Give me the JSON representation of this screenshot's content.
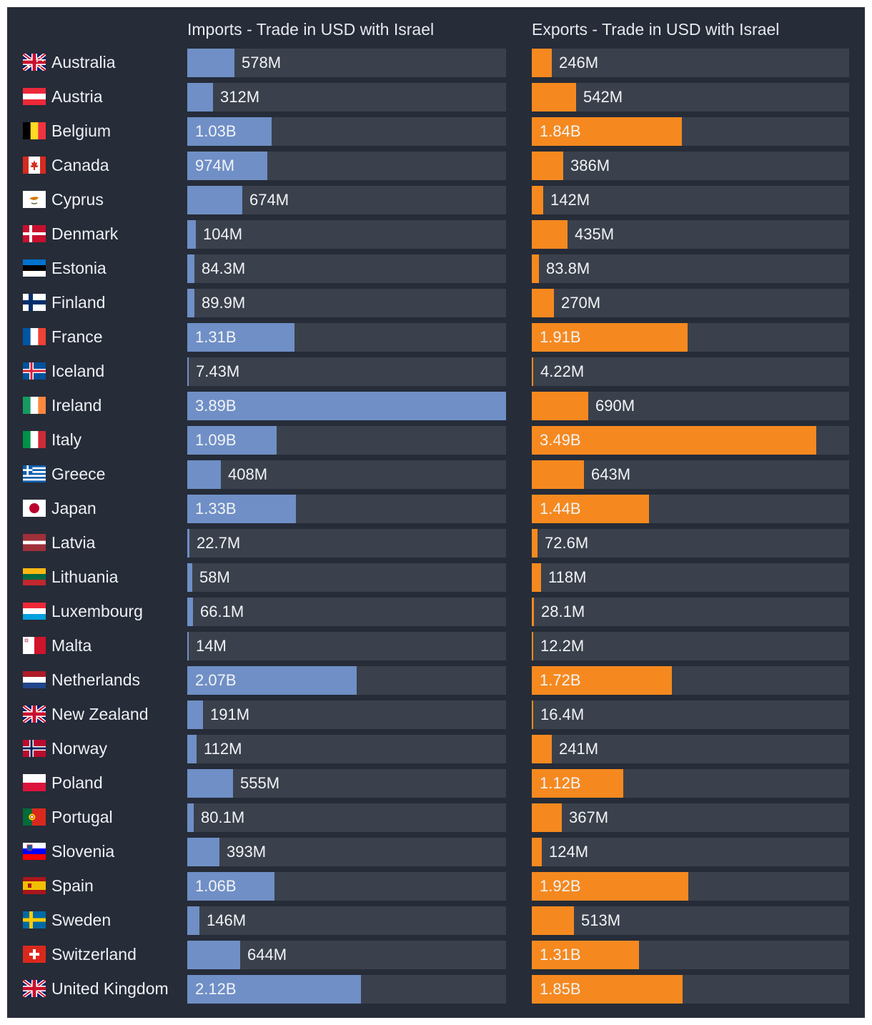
{
  "colors": {
    "background": "#262c38",
    "track": "#3a414c",
    "imports_bar": "#6f8fc6",
    "exports_bar": "#f5891f",
    "text": "#eef0f3"
  },
  "chart_data": {
    "type": "bar",
    "orientation": "horizontal",
    "imports_title": "Imports - Trade in USD with Israel",
    "exports_title": "Exports - Trade in USD with Israel",
    "categories": [
      "Australia",
      "Austria",
      "Belgium",
      "Canada",
      "Cyprus",
      "Denmark",
      "Estonia",
      "Finland",
      "France",
      "Iceland",
      "Ireland",
      "Italy",
      "Greece",
      "Japan",
      "Latvia",
      "Lithuania",
      "Luxembourg",
      "Malta",
      "Netherlands",
      "New Zealand",
      "Norway",
      "Poland",
      "Portugal",
      "Slovenia",
      "Spain",
      "Sweden",
      "Switzerland",
      "United Kingdom"
    ],
    "flag_icons": [
      "australia-flag-icon",
      "austria-flag-icon",
      "belgium-flag-icon",
      "canada-flag-icon",
      "cyprus-flag-icon",
      "denmark-flag-icon",
      "estonia-flag-icon",
      "finland-flag-icon",
      "france-flag-icon",
      "iceland-flag-icon",
      "ireland-flag-icon",
      "italy-flag-icon",
      "greece-flag-icon",
      "japan-flag-icon",
      "latvia-flag-icon",
      "lithuania-flag-icon",
      "luxembourg-flag-icon",
      "malta-flag-icon",
      "netherlands-flag-icon",
      "new-zealand-flag-icon",
      "norway-flag-icon",
      "poland-flag-icon",
      "portugal-flag-icon",
      "slovenia-flag-icon",
      "spain-flag-icon",
      "sweden-flag-icon",
      "switzerland-flag-icon",
      "united-kingdom-flag-icon"
    ],
    "series": [
      {
        "values": [
          578000000,
          312000000,
          1030000000,
          974000000,
          674000000,
          104000000,
          84300000,
          89900000,
          1310000000,
          7430000,
          3890000000,
          1090000000,
          408000000,
          1330000000,
          22700000,
          58000000,
          66100000,
          14000000,
          2070000000,
          191000000,
          112000000,
          555000000,
          80100000,
          393000000,
          1060000000,
          146000000,
          644000000,
          2120000000
        ],
        "labels": [
          "578M",
          "312M",
          "1.03B",
          "974M",
          "674M",
          "104M",
          "84.3M",
          "89.9M",
          "1.31B",
          "7.43M",
          "3.89B",
          "1.09B",
          "408M",
          "1.33B",
          "22.7M",
          "58M",
          "66.1M",
          "14M",
          "2.07B",
          "191M",
          "112M",
          "555M",
          "80.1M",
          "393M",
          "1.06B",
          "146M",
          "644M",
          "2.12B"
        ]
      },
      {
        "values": [
          246000000,
          542000000,
          1840000000,
          386000000,
          142000000,
          435000000,
          83800000,
          270000000,
          1910000000,
          4220000,
          690000000,
          3490000000,
          643000000,
          1440000000,
          72600000,
          118000000,
          28100000,
          12200000,
          1720000000,
          16400000,
          241000000,
          1120000000,
          367000000,
          124000000,
          1920000000,
          513000000,
          1310000000,
          1850000000
        ],
        "labels": [
          "246M",
          "542M",
          "1.84B",
          "386M",
          "142M",
          "435M",
          "83.8M",
          "270M",
          "1.91B",
          "4.22M",
          "690M",
          "3.49B",
          "643M",
          "1.44B",
          "72.6M",
          "118M",
          "28.1M",
          "12.2M",
          "1.72B",
          "16.4M",
          "241M",
          "1.12B",
          "367M",
          "124M",
          "1.92B",
          "513M",
          "1.31B",
          "1.85B"
        ]
      }
    ],
    "imports_xlim": [
      0,
      3890000000
    ],
    "exports_xlim": [
      0,
      3890000000
    ],
    "grid": false,
    "legend": "none"
  }
}
